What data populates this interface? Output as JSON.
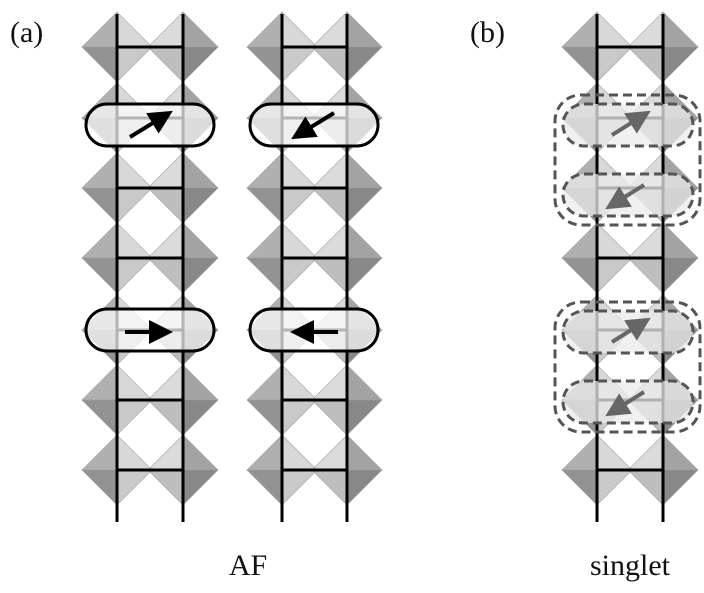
{
  "panels": [
    {
      "label": "(a)",
      "caption": "AF"
    },
    {
      "label": "(b)",
      "caption": "singlet"
    }
  ]
}
